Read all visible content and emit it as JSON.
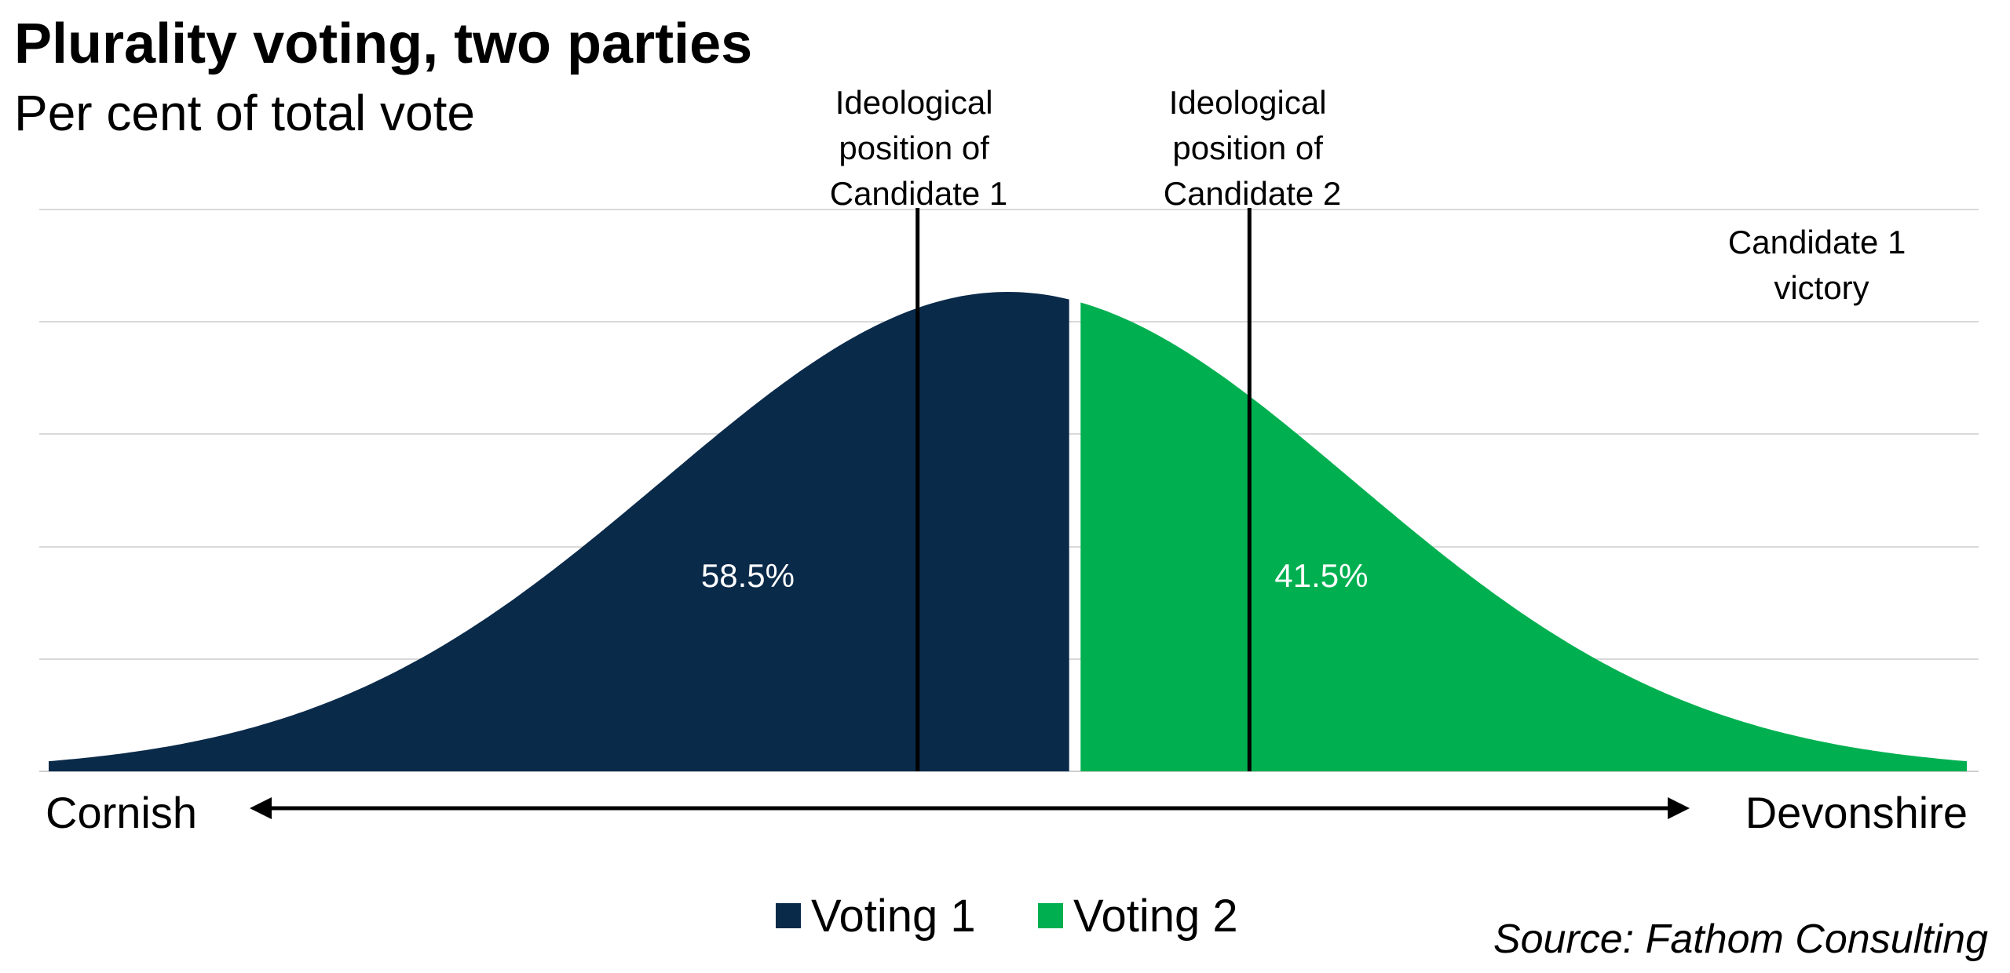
{
  "header": {
    "title": "Plurality voting, two parties",
    "subtitle": "Per cent of total vote"
  },
  "annotations": {
    "candidate1_position": [
      "Ideological",
      "position of",
      "Candidate 1"
    ],
    "candidate2_position": [
      "Ideological",
      "position of",
      "Candidate 2"
    ],
    "outcome": [
      "Candidate 1",
      "victory"
    ]
  },
  "axis": {
    "left_label": "Cornish",
    "right_label": "Devonshire"
  },
  "legend": [
    {
      "label": "Voting 1",
      "color": "#0a2a4a"
    },
    {
      "label": "Voting 2",
      "color": "#00b050"
    }
  ],
  "source": "Source: Fathom Consulting",
  "chart_data": {
    "type": "area",
    "title": "Plurality voting, two parties",
    "subtitle": "Per cent of total vote",
    "xlabel_left": "Cornish",
    "xlabel_right": "Devonshire",
    "distribution": {
      "shape": "normal",
      "mean": 0.5,
      "sd": 0.18,
      "x_range": [
        0,
        1
      ]
    },
    "split_point": 0.535,
    "candidate_positions": [
      0.453,
      0.626
    ],
    "series": [
      {
        "name": "Voting 1",
        "share_pct": 58.5,
        "label": "58.5%",
        "color": "#0a2a4a"
      },
      {
        "name": "Voting 2",
        "share_pct": 41.5,
        "label": "41.5%",
        "color": "#00b050"
      }
    ],
    "grid": true,
    "legend_position": "bottom"
  }
}
